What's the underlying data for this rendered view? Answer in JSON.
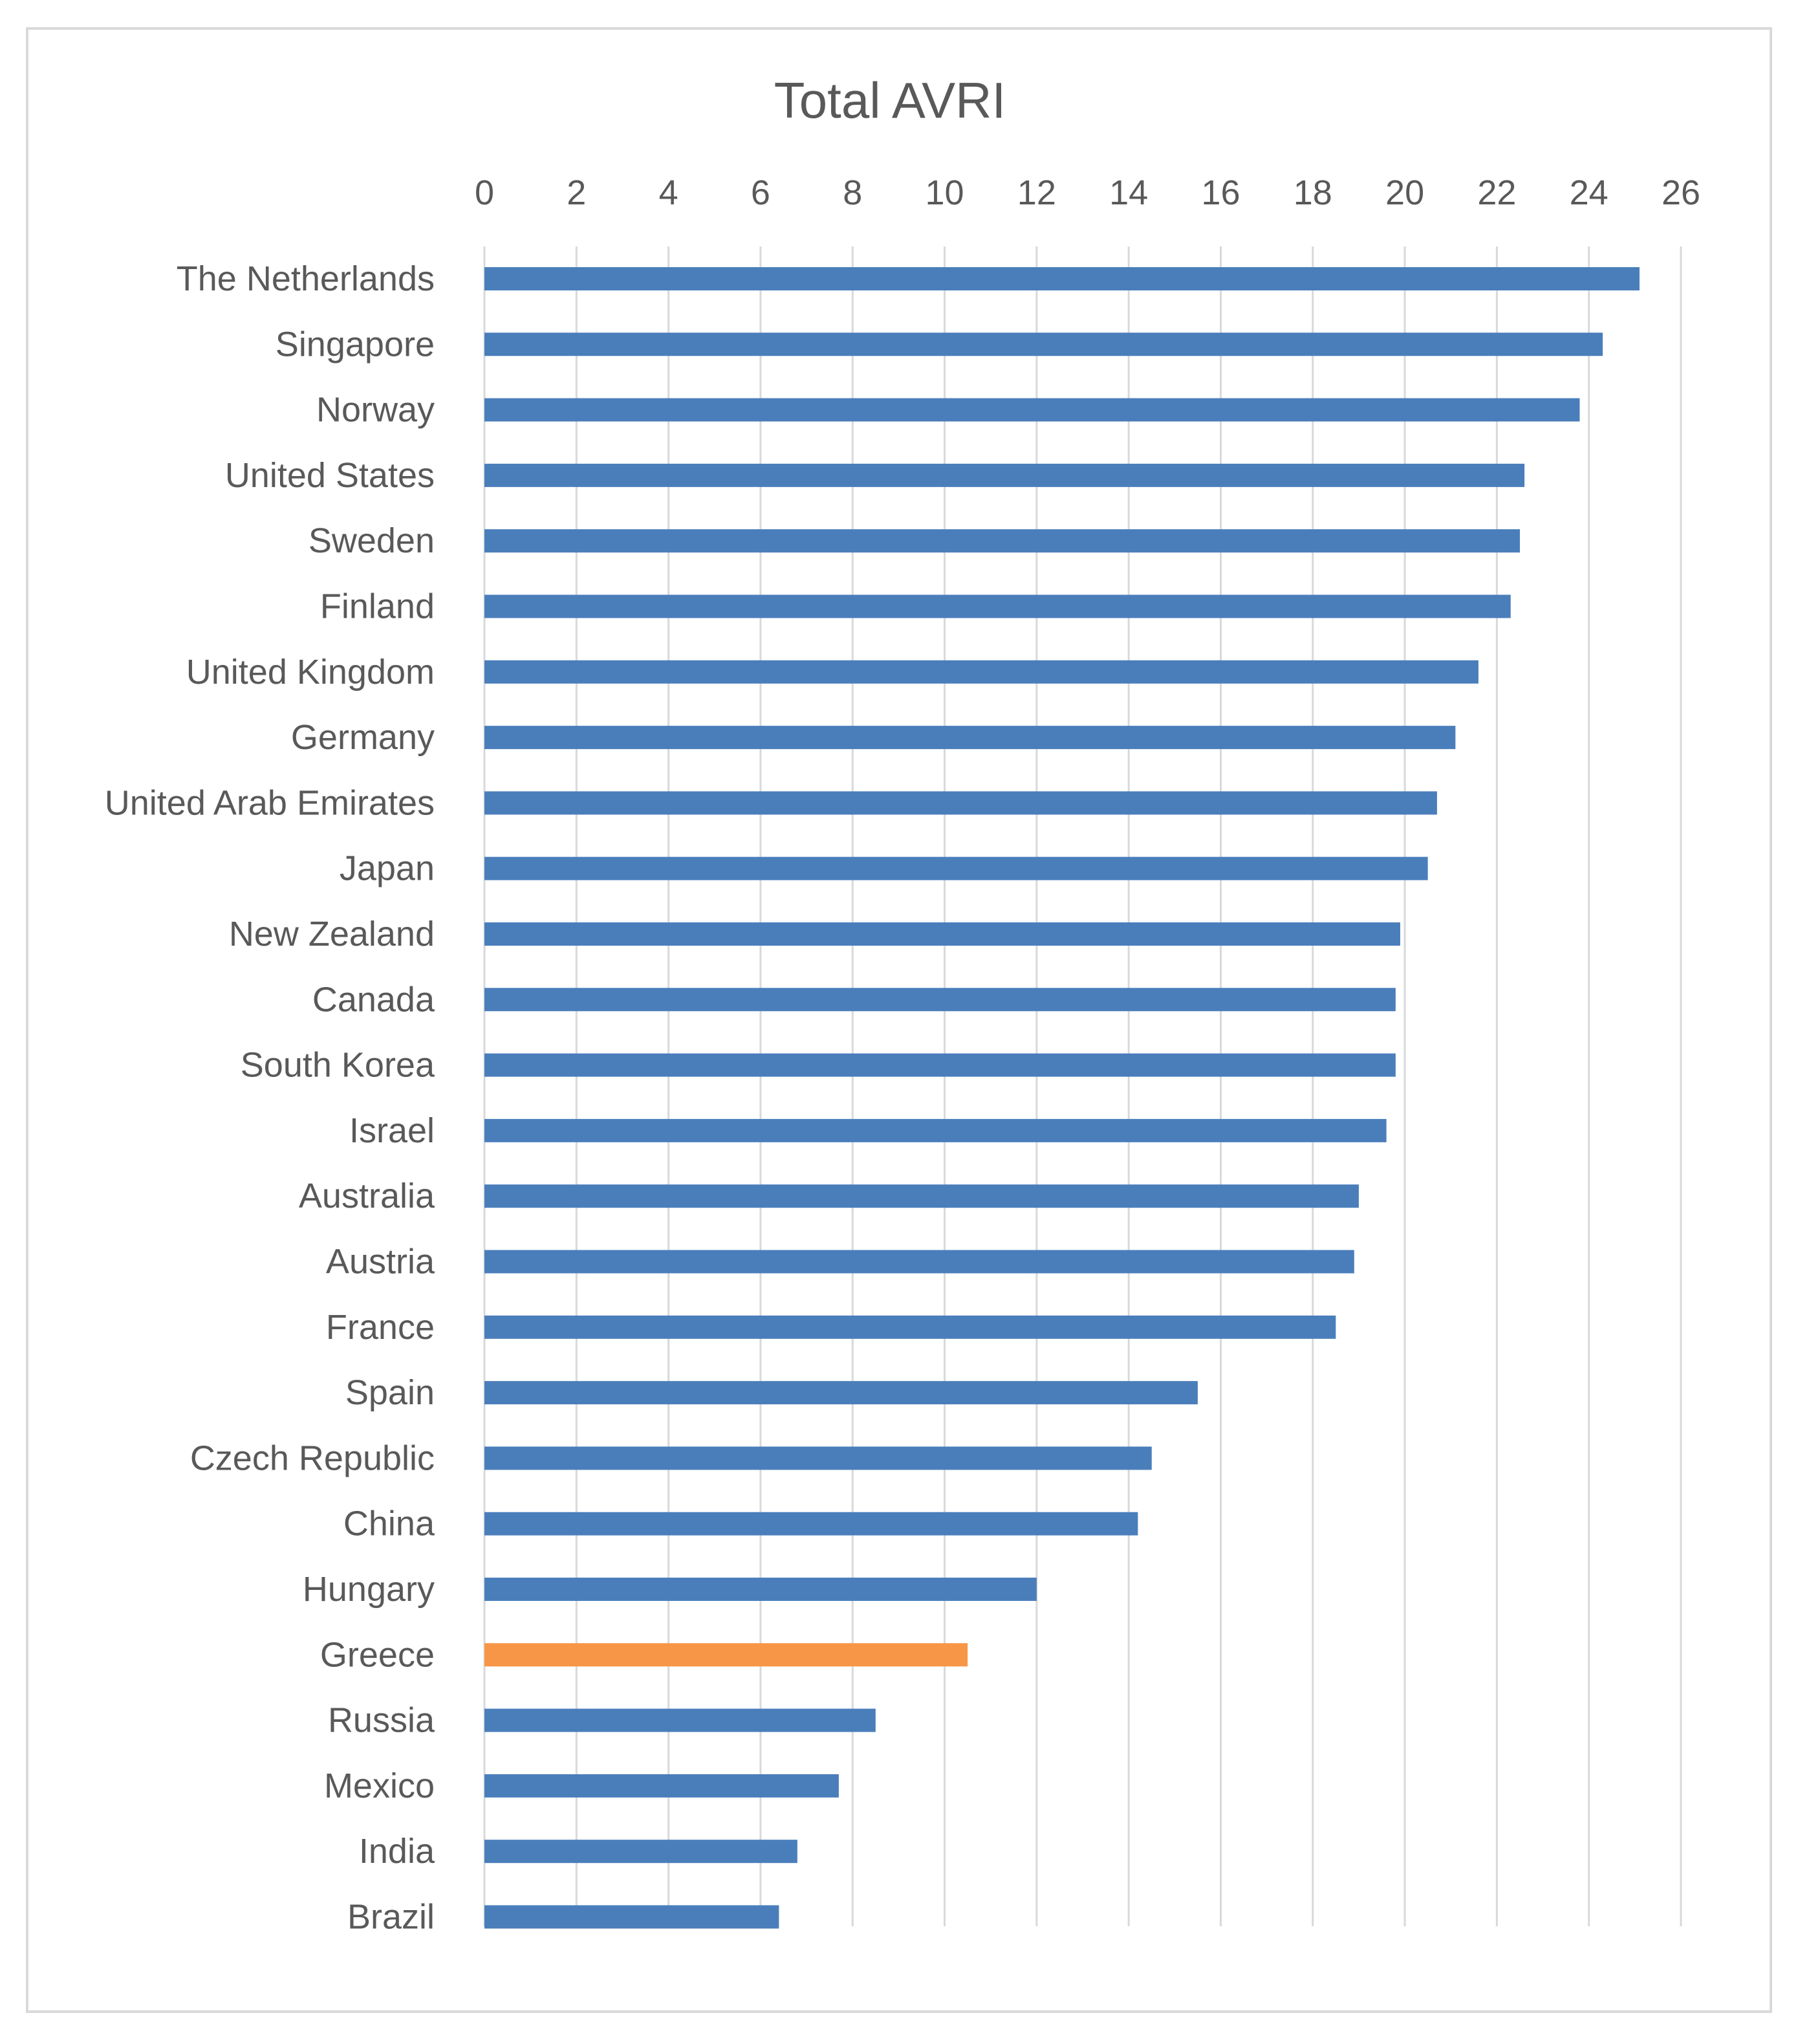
{
  "chart_data": {
    "type": "bar",
    "orientation": "horizontal",
    "title": "Total AVRI",
    "xlabel": "",
    "ylabel": "",
    "xlim": [
      0,
      26
    ],
    "ticks": [
      "0",
      "2",
      "4",
      "6",
      "8",
      "10",
      "12",
      "14",
      "16",
      "18",
      "20",
      "22",
      "24",
      "26"
    ],
    "tick_values": [
      0,
      2,
      4,
      6,
      8,
      10,
      12,
      14,
      16,
      18,
      20,
      22,
      24,
      26
    ],
    "grid": "vertical",
    "legend": "none",
    "categories": [
      "The Netherlands",
      "Singapore",
      "Norway",
      "United States",
      "Sweden",
      "Finland",
      "United Kingdom",
      "Germany",
      "United Arab Emirates",
      "Japan",
      "New Zealand",
      "Canada",
      "South Korea",
      "Israel",
      "Australia",
      "Austria",
      "France",
      "Spain",
      "Czech Republic",
      "China",
      "Hungary",
      "Greece",
      "Russia",
      "Mexico",
      "India",
      "Brazil"
    ],
    "values": [
      25.1,
      24.3,
      23.8,
      22.6,
      22.5,
      22.3,
      21.6,
      21.1,
      20.7,
      20.5,
      19.9,
      19.8,
      19.8,
      19.6,
      19.0,
      18.9,
      18.5,
      15.5,
      14.5,
      14.2,
      12.0,
      10.5,
      8.5,
      7.7,
      6.8,
      6.4
    ],
    "highlight": "Greece",
    "colors": {
      "bar": "#4a7ebb",
      "highlight": "#f79646",
      "grid": "#d9d9d9",
      "text": "#595959"
    }
  }
}
